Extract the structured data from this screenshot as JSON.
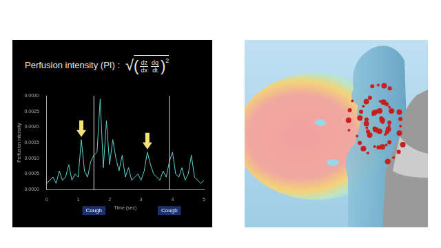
{
  "chart_data": {
    "type": "line",
    "title": "Perfusion intensity (PI) :",
    "formula": {
      "root": "√",
      "fractions": [
        [
          "dz",
          "dx"
        ],
        [
          "dq",
          "dt"
        ]
      ],
      "power": "2"
    },
    "x_label": "Time (sec)",
    "y_label": "Perfusion intensity",
    "x": [
      0,
      0.1,
      0.2,
      0.3,
      0.4,
      0.5,
      0.6,
      0.7,
      0.8,
      0.9,
      1.0,
      1.1,
      1.2,
      1.3,
      1.4,
      1.5,
      1.6,
      1.7,
      1.8,
      1.9,
      2.0,
      2.1,
      2.2,
      2.3,
      2.4,
      2.5,
      2.6,
      2.7,
      2.8,
      2.9,
      3.0,
      3.1,
      3.2,
      3.3,
      3.4,
      3.5,
      3.6,
      3.7,
      3.8,
      3.9,
      4.0,
      4.1,
      4.2,
      4.3,
      4.4,
      4.5,
      4.6,
      4.7,
      4.8,
      4.9,
      5.0
    ],
    "values": [
      0.0002,
      0.0003,
      0.0004,
      0.0002,
      0.0006,
      0.0003,
      0.0004,
      0.0008,
      0.0003,
      0.0005,
      0.0004,
      0.0016,
      0.0006,
      0.0004,
      0.0009,
      0.0011,
      0.0012,
      0.0029,
      0.0007,
      0.0022,
      0.0008,
      0.0016,
      0.001,
      0.0006,
      0.0011,
      0.0004,
      0.0007,
      0.0003,
      0.0004,
      0.0005,
      0.0003,
      0.0006,
      0.0012,
      0.0008,
      0.0005,
      0.0004,
      0.0003,
      0.0006,
      0.0004,
      0.0009,
      0.0012,
      0.0005,
      0.0004,
      0.0007,
      0.0003,
      0.0005,
      0.0011,
      0.0004,
      0.0003,
      0.0002,
      0.0003
    ],
    "color": "#5fd3d0",
    "xlim": [
      0,
      5
    ],
    "xticks": [
      0,
      1,
      2,
      3,
      4,
      5
    ],
    "ylim": [
      0,
      0.003
    ],
    "yticks": [
      {
        "value": 0,
        "label": "0.0000"
      },
      {
        "value": 0.0005,
        "label": "0.0005"
      },
      {
        "value": 0.001,
        "label": "0.0010"
      },
      {
        "value": 0.0015,
        "label": "0.0015"
      },
      {
        "value": 0.002,
        "label": "0.0020"
      },
      {
        "value": 0.0025,
        "label": "0.0025"
      },
      {
        "value": 0.003,
        "label": "0.0030"
      }
    ],
    "grid": false,
    "annotations": [
      {
        "text": "Cough",
        "x": 1.5
      },
      {
        "text": "Cough",
        "x": 3.9
      }
    ],
    "arrows": [
      {
        "x": 1.1,
        "y": 0.0016
      },
      {
        "x": 3.2,
        "y": 0.0012
      }
    ]
  }
}
